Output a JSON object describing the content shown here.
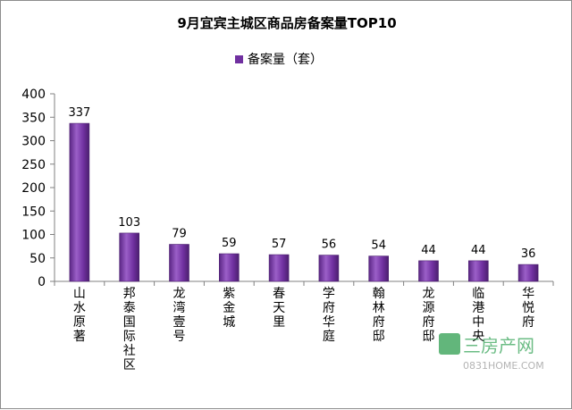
{
  "chart_data": {
    "type": "bar",
    "title": "9月宜宾主城区商品房备案量TOP10",
    "legend": {
      "label": "备案量（套）",
      "position": "top"
    },
    "categories": [
      "山水原著",
      "邦泰国际社区",
      "龙湾壹号",
      "紫金城",
      "春天里",
      "学府华庭",
      "翰林府邸",
      "龙源府邸",
      "临港中央",
      "华悦府"
    ],
    "series": [
      {
        "name": "备案量（套）",
        "values": [
          337,
          103,
          79,
          59,
          57,
          56,
          54,
          44,
          44,
          36
        ]
      }
    ],
    "ylim": [
      0,
      400
    ],
    "yticks": [
      0,
      50,
      100,
      150,
      200,
      250,
      300,
      350,
      400
    ],
    "grid": false,
    "colors": {
      "bar": "#7030a0",
      "bar_light": "#9b5fc8",
      "bar_dark": "#4b1f6e"
    }
  },
  "watermark": {
    "text": "三房产网",
    "url_text": "0831HOME.COM"
  }
}
